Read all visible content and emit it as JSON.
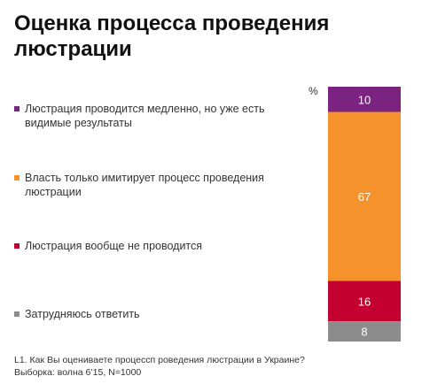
{
  "title": "Оценка процесса проведения люстрации",
  "percent_sign": "%",
  "footnote": {
    "question": "L1. Как Вы оцениваете процессп роведения люстрации в Украине?",
    "sample": "Выборка: волна 6’15, N=1000"
  },
  "chart_data": {
    "type": "bar",
    "stacked": true,
    "orientation": "vertical",
    "unit": "%",
    "series": [
      {
        "name": "Люстрация проводится медленно, но уже есть видимые результаты",
        "value": 10,
        "color": "#7B2381"
      },
      {
        "name": "Власть только имитирует процесс проведения люстрации",
        "value": 67,
        "color": "#F5922B"
      },
      {
        "name": "Люстрация вообще не проводится",
        "value": 16,
        "color": "#C3002F"
      },
      {
        "name": "Затрудняюсь ответить",
        "value": 8,
        "color": "#8C8C8C"
      }
    ]
  }
}
